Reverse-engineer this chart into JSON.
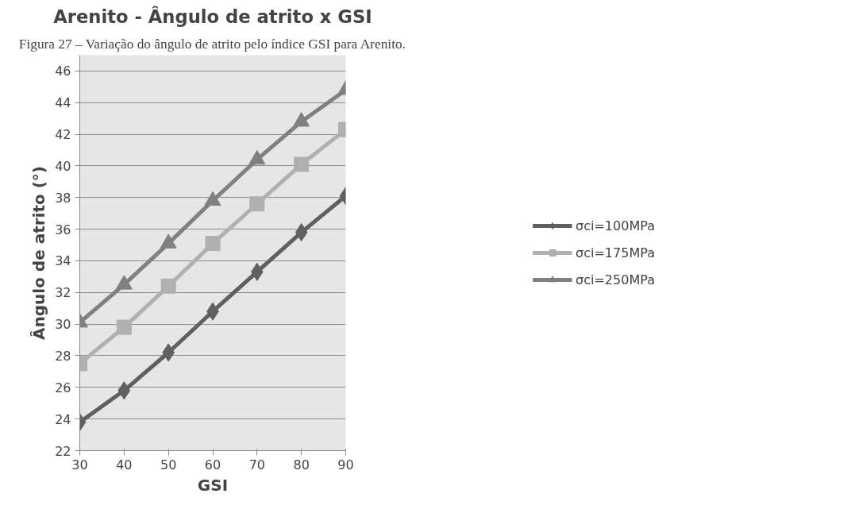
{
  "chart_data": {
    "type": "line",
    "title": "Arenito - Ângulo de atrito x GSI",
    "xlabel": "GSI",
    "ylabel": "Ângulo de atrito (°)",
    "annotations": [
      "Figura 27 – Variação do ângulo de atrito pelo índice GSI para Arenito."
    ],
    "x": [
      30,
      40,
      50,
      60,
      70,
      80,
      90
    ],
    "series": [
      {
        "name": "σci=100MPa",
        "color": "#606060",
        "marker": "diamond",
        "values": [
          23.8,
          25.8,
          28.2,
          30.8,
          33.3,
          35.8,
          38.1
        ]
      },
      {
        "name": "σci=175MPa",
        "color": "#b0b0b0",
        "marker": "square",
        "values": [
          27.5,
          29.8,
          32.4,
          35.1,
          37.6,
          40.1,
          42.3
        ]
      },
      {
        "name": "σci=250MPa",
        "color": "#808080",
        "marker": "triangle",
        "values": [
          30.1,
          32.5,
          35.1,
          37.8,
          40.4,
          42.8,
          44.8
        ]
      }
    ],
    "xlim": [
      30,
      90
    ],
    "xticks": [
      30,
      40,
      50,
      60,
      70,
      80,
      90
    ],
    "ylim": [
      22,
      47
    ],
    "yticks": [
      22,
      24,
      26,
      28,
      30,
      32,
      34,
      36,
      38,
      40,
      42,
      44,
      46
    ],
    "grid": "y",
    "legend": "right",
    "line_style": "solid"
  }
}
